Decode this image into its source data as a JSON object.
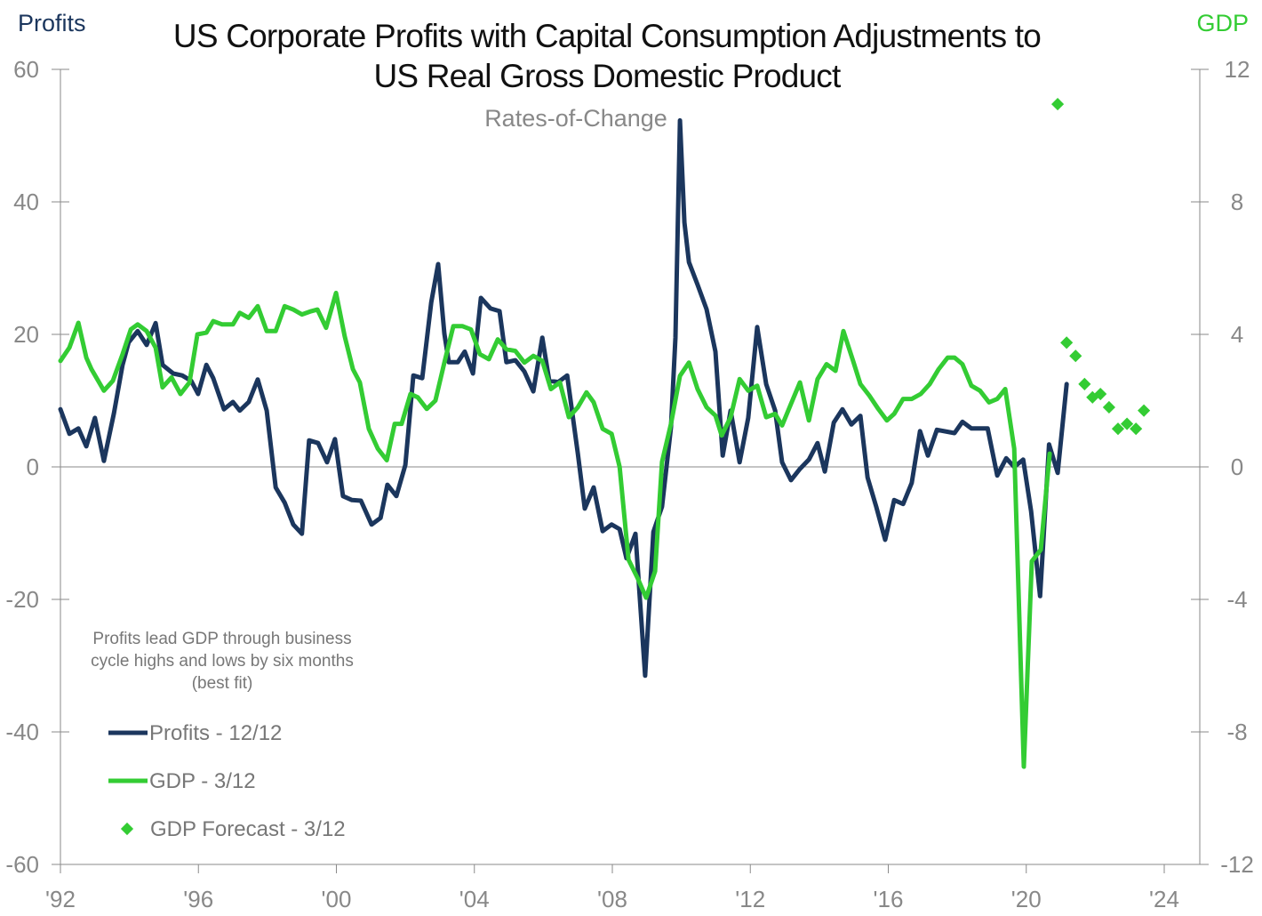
{
  "chart_data": {
    "type": "line",
    "title_line1": "US Corporate Profits with Capital Consumption Adjustments to",
    "title_line2": "US Real Gross Domestic Product",
    "subtitle": "Rates-of-Change",
    "left_axis_label": "Profits",
    "right_axis_label": "GDP",
    "left_ylim": [
      -60,
      60
    ],
    "right_ylim": [
      -12,
      12
    ],
    "left_ticks": [
      "60",
      "40",
      "20",
      "0",
      "-20",
      "-40",
      "-60"
    ],
    "right_ticks": [
      "12",
      "8",
      "4",
      "0",
      "-4",
      "-8",
      "-12"
    ],
    "xlim": [
      1992,
      2025.2
    ],
    "x_ticks": [
      {
        "year": 1992,
        "label": "'92"
      },
      {
        "year": 1996,
        "label": "'96"
      },
      {
        "year": 2000,
        "label": "'00"
      },
      {
        "year": 2004,
        "label": "'04"
      },
      {
        "year": 2008,
        "label": "'08"
      },
      {
        "year": 2012,
        "label": "'12"
      },
      {
        "year": 2016,
        "label": "'16"
      },
      {
        "year": 2020,
        "label": "'20"
      },
      {
        "year": 2024,
        "label": "'24"
      }
    ],
    "grid": false,
    "annotation": [
      "Profits lead GDP through business",
      "cycle highs and lows by six months",
      "(best fit)"
    ],
    "colors": {
      "profits": "#1b365d",
      "gdp": "#33cc33",
      "axis": "#8a8a8a",
      "text": "#777777"
    },
    "series": [
      {
        "name": "Profits - 12/12",
        "axis": "left",
        "style": "line",
        "points": [
          [
            1992.0,
            8.7
          ],
          [
            1992.26,
            5.0
          ],
          [
            1992.52,
            5.8
          ],
          [
            1992.75,
            3.1
          ],
          [
            1993.0,
            7.4
          ],
          [
            1993.26,
            0.9
          ],
          [
            1993.55,
            8.1
          ],
          [
            1993.8,
            15.4
          ],
          [
            1993.98,
            18.8
          ],
          [
            1994.24,
            20.5
          ],
          [
            1994.5,
            18.4
          ],
          [
            1994.76,
            21.7
          ],
          [
            1994.96,
            15.4
          ],
          [
            1995.27,
            14.1
          ],
          [
            1995.53,
            13.8
          ],
          [
            1995.79,
            13.0
          ],
          [
            1995.99,
            11.0
          ],
          [
            1996.23,
            15.4
          ],
          [
            1996.43,
            13.4
          ],
          [
            1996.74,
            8.7
          ],
          [
            1997.0,
            9.8
          ],
          [
            1997.2,
            8.5
          ],
          [
            1997.46,
            9.8
          ],
          [
            1997.72,
            13.2
          ],
          [
            1997.98,
            8.5
          ],
          [
            1998.24,
            -3.1
          ],
          [
            1998.5,
            -5.4
          ],
          [
            1998.75,
            -8.7
          ],
          [
            1999.0,
            -10.1
          ],
          [
            1999.21,
            4.0
          ],
          [
            1999.47,
            3.6
          ],
          [
            1999.73,
            0.7
          ],
          [
            1999.96,
            4.2
          ],
          [
            2000.19,
            -4.4
          ],
          [
            2000.45,
            -5.0
          ],
          [
            2000.71,
            -5.1
          ],
          [
            2001.02,
            -8.7
          ],
          [
            2001.28,
            -7.7
          ],
          [
            2001.48,
            -2.7
          ],
          [
            2001.74,
            -4.4
          ],
          [
            2002.0,
            0.3
          ],
          [
            2002.23,
            13.8
          ],
          [
            2002.49,
            13.4
          ],
          [
            2002.75,
            24.8
          ],
          [
            2002.95,
            30.6
          ],
          [
            2003.13,
            20.1
          ],
          [
            2003.26,
            15.8
          ],
          [
            2003.52,
            15.8
          ],
          [
            2003.72,
            17.4
          ],
          [
            2003.96,
            14.1
          ],
          [
            2004.19,
            25.5
          ],
          [
            2004.47,
            23.9
          ],
          [
            2004.73,
            23.5
          ],
          [
            2004.93,
            15.8
          ],
          [
            2005.19,
            16.1
          ],
          [
            2005.45,
            14.4
          ],
          [
            2005.71,
            11.4
          ],
          [
            2005.97,
            19.5
          ],
          [
            2006.17,
            13.0
          ],
          [
            2006.43,
            12.8
          ],
          [
            2006.69,
            13.8
          ],
          [
            2007.0,
            2.0
          ],
          [
            2007.2,
            -6.3
          ],
          [
            2007.46,
            -3.1
          ],
          [
            2007.72,
            -9.7
          ],
          [
            2007.98,
            -8.7
          ],
          [
            2008.21,
            -9.4
          ],
          [
            2008.41,
            -13.8
          ],
          [
            2008.67,
            -10.1
          ],
          [
            2008.95,
            -31.5
          ],
          [
            2009.19,
            -9.8
          ],
          [
            2009.44,
            -6.0
          ],
          [
            2009.7,
            6.0
          ],
          [
            2009.83,
            19.5
          ],
          [
            2009.96,
            52.3
          ],
          [
            2010.09,
            36.9
          ],
          [
            2010.22,
            30.9
          ],
          [
            2010.47,
            27.5
          ],
          [
            2010.73,
            23.8
          ],
          [
            2010.99,
            17.4
          ],
          [
            2011.2,
            1.7
          ],
          [
            2011.43,
            8.5
          ],
          [
            2011.69,
            0.7
          ],
          [
            2011.94,
            7.4
          ],
          [
            2012.2,
            21.1
          ],
          [
            2012.46,
            12.5
          ],
          [
            2012.72,
            8.5
          ],
          [
            2012.92,
            0.7
          ],
          [
            2013.18,
            -2.0
          ],
          [
            2013.44,
            -0.3
          ],
          [
            2013.7,
            1.1
          ],
          [
            2013.95,
            3.6
          ],
          [
            2014.16,
            -0.7
          ],
          [
            2014.42,
            6.7
          ],
          [
            2014.67,
            8.7
          ],
          [
            2014.93,
            6.4
          ],
          [
            2015.19,
            7.7
          ],
          [
            2015.4,
            -1.6
          ],
          [
            2015.65,
            -6.0
          ],
          [
            2015.91,
            -11.0
          ],
          [
            2016.17,
            -5.0
          ],
          [
            2016.43,
            -5.6
          ],
          [
            2016.68,
            -2.4
          ],
          [
            2016.92,
            5.4
          ],
          [
            2017.15,
            1.7
          ],
          [
            2017.41,
            5.6
          ],
          [
            2017.92,
            5.1
          ],
          [
            2018.15,
            6.8
          ],
          [
            2018.41,
            5.8
          ],
          [
            2018.88,
            5.8
          ],
          [
            2019.16,
            -1.3
          ],
          [
            2019.42,
            1.3
          ],
          [
            2019.65,
            0.0
          ],
          [
            2019.91,
            1.1
          ],
          [
            2020.14,
            -6.7
          ],
          [
            2020.4,
            -19.5
          ],
          [
            2020.66,
            3.4
          ],
          [
            2020.91,
            -0.9
          ],
          [
            2021.17,
            12.5
          ]
        ]
      },
      {
        "name": "GDP - 3/12",
        "axis": "right",
        "style": "line",
        "points": [
          [
            1992.0,
            3.2
          ],
          [
            1992.26,
            3.6
          ],
          [
            1992.52,
            4.35
          ],
          [
            1992.75,
            3.3
          ],
          [
            1992.9,
            2.95
          ],
          [
            1993.26,
            2.3
          ],
          [
            1993.52,
            2.6
          ],
          [
            1993.8,
            3.4
          ],
          [
            1994.04,
            4.15
          ],
          [
            1994.24,
            4.3
          ],
          [
            1994.5,
            4.1
          ],
          [
            1994.76,
            3.6
          ],
          [
            1994.96,
            2.4
          ],
          [
            1995.22,
            2.7
          ],
          [
            1995.48,
            2.2
          ],
          [
            1995.74,
            2.55
          ],
          [
            1995.97,
            4.0
          ],
          [
            1996.23,
            4.05
          ],
          [
            1996.43,
            4.4
          ],
          [
            1996.69,
            4.3
          ],
          [
            1997.0,
            4.3
          ],
          [
            1997.2,
            4.65
          ],
          [
            1997.46,
            4.5
          ],
          [
            1997.72,
            4.85
          ],
          [
            1997.98,
            4.1
          ],
          [
            1998.24,
            4.1
          ],
          [
            1998.5,
            4.85
          ],
          [
            1998.75,
            4.75
          ],
          [
            1999.0,
            4.6
          ],
          [
            1999.27,
            4.7
          ],
          [
            1999.45,
            4.75
          ],
          [
            1999.7,
            4.2
          ],
          [
            1999.99,
            5.25
          ],
          [
            2000.24,
            3.95
          ],
          [
            2000.48,
            2.95
          ],
          [
            2000.68,
            2.55
          ],
          [
            2000.94,
            1.15
          ],
          [
            2001.2,
            0.55
          ],
          [
            2001.46,
            0.2
          ],
          [
            2001.69,
            1.3
          ],
          [
            2001.89,
            1.3
          ],
          [
            2002.15,
            2.2
          ],
          [
            2002.36,
            2.1
          ],
          [
            2002.62,
            1.75
          ],
          [
            2002.87,
            2.0
          ],
          [
            2003.13,
            3.15
          ],
          [
            2003.39,
            4.25
          ],
          [
            2003.65,
            4.25
          ],
          [
            2003.9,
            4.15
          ],
          [
            2004.16,
            3.4
          ],
          [
            2004.42,
            3.25
          ],
          [
            2004.68,
            3.85
          ],
          [
            2004.93,
            3.55
          ],
          [
            2005.19,
            3.5
          ],
          [
            2005.45,
            3.15
          ],
          [
            2005.71,
            3.35
          ],
          [
            2005.97,
            3.2
          ],
          [
            2006.22,
            2.35
          ],
          [
            2006.48,
            2.55
          ],
          [
            2006.74,
            1.5
          ],
          [
            2007.0,
            1.8
          ],
          [
            2007.25,
            2.25
          ],
          [
            2007.46,
            1.95
          ],
          [
            2007.72,
            1.15
          ],
          [
            2007.98,
            1.0
          ],
          [
            2008.21,
            0.0
          ],
          [
            2008.47,
            -2.8
          ],
          [
            2008.73,
            -3.35
          ],
          [
            2008.98,
            -3.95
          ],
          [
            2009.24,
            -3.15
          ],
          [
            2009.44,
            0.15
          ],
          [
            2009.7,
            1.3
          ],
          [
            2009.96,
            2.75
          ],
          [
            2010.22,
            3.15
          ],
          [
            2010.47,
            2.35
          ],
          [
            2010.73,
            1.8
          ],
          [
            2010.99,
            1.55
          ],
          [
            2011.17,
            0.95
          ],
          [
            2011.43,
            1.5
          ],
          [
            2011.69,
            2.65
          ],
          [
            2011.94,
            2.3
          ],
          [
            2012.2,
            2.45
          ],
          [
            2012.46,
            1.5
          ],
          [
            2012.72,
            1.6
          ],
          [
            2012.92,
            1.25
          ],
          [
            2013.18,
            1.9
          ],
          [
            2013.44,
            2.55
          ],
          [
            2013.7,
            1.4
          ],
          [
            2013.95,
            2.65
          ],
          [
            2014.21,
            3.1
          ],
          [
            2014.47,
            2.9
          ],
          [
            2014.7,
            4.1
          ],
          [
            2014.98,
            3.2
          ],
          [
            2015.19,
            2.5
          ],
          [
            2015.45,
            2.15
          ],
          [
            2015.71,
            1.75
          ],
          [
            2015.96,
            1.4
          ],
          [
            2016.17,
            1.6
          ],
          [
            2016.43,
            2.05
          ],
          [
            2016.68,
            2.05
          ],
          [
            2016.94,
            2.2
          ],
          [
            2017.2,
            2.5
          ],
          [
            2017.46,
            2.95
          ],
          [
            2017.72,
            3.3
          ],
          [
            2017.92,
            3.3
          ],
          [
            2018.15,
            3.1
          ],
          [
            2018.41,
            2.45
          ],
          [
            2018.66,
            2.3
          ],
          [
            2018.92,
            1.95
          ],
          [
            2019.16,
            2.05
          ],
          [
            2019.39,
            2.35
          ],
          [
            2019.65,
            0.55
          ],
          [
            2019.93,
            -9.05
          ],
          [
            2020.16,
            -2.85
          ],
          [
            2020.42,
            -2.5
          ],
          [
            2020.68,
            0.4
          ]
        ]
      },
      {
        "name": "GDP Forecast - 3/12",
        "axis": "right",
        "style": "diamond",
        "points": [
          [
            2020.91,
            10.95
          ],
          [
            2021.17,
            3.75
          ],
          [
            2021.43,
            3.35
          ],
          [
            2021.69,
            2.5
          ],
          [
            2021.92,
            2.1
          ],
          [
            2022.15,
            2.2
          ],
          [
            2022.4,
            1.8
          ],
          [
            2022.66,
            1.15
          ],
          [
            2022.92,
            1.3
          ],
          [
            2023.18,
            1.15
          ],
          [
            2023.41,
            1.7
          ]
        ]
      }
    ],
    "legend_placement": "bottom-left"
  }
}
